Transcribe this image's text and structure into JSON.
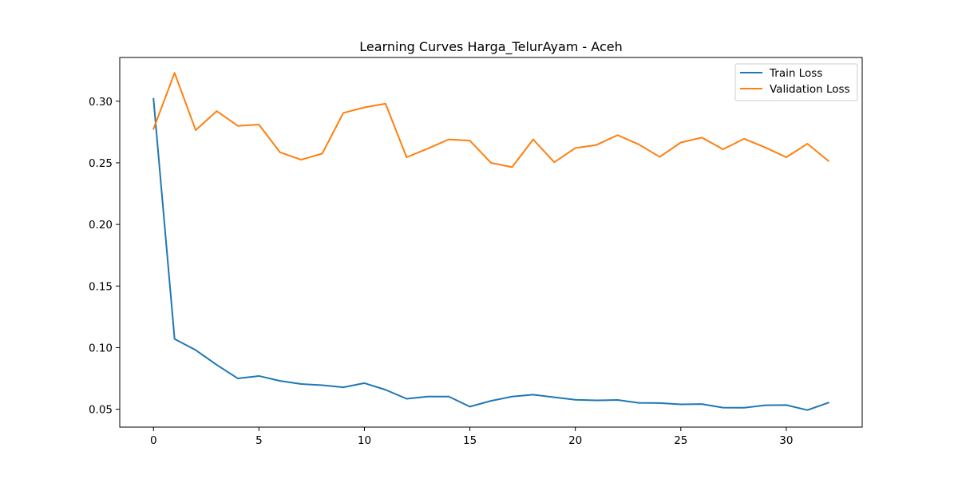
{
  "chart_data": {
    "type": "line",
    "title": "Learning Curves Harga_TelurAyam - Aceh",
    "xlabel": "",
    "ylabel": "",
    "xlim": [
      -1.6,
      33.6
    ],
    "ylim": [
      0.0355,
      0.3355
    ],
    "xticks": [
      0,
      5,
      10,
      15,
      20,
      25,
      30
    ],
    "yticks": [
      0.05,
      0.1,
      0.15,
      0.2,
      0.25,
      0.3
    ],
    "ytick_labels": [
      "0.05",
      "0.10",
      "0.15",
      "0.20",
      "0.25",
      "0.30"
    ],
    "grid": false,
    "legend_position": "top-right",
    "x": [
      0,
      1,
      2,
      3,
      4,
      5,
      6,
      7,
      8,
      9,
      10,
      11,
      12,
      13,
      14,
      15,
      16,
      17,
      18,
      19,
      20,
      21,
      22,
      23,
      24,
      25,
      26,
      27,
      28,
      29,
      30,
      31,
      32
    ],
    "series": [
      {
        "name": "Train Loss",
        "color": "#1f77b4",
        "values": [
          0.302,
          0.107,
          0.098,
          0.086,
          0.075,
          0.077,
          0.073,
          0.0705,
          0.0695,
          0.0678,
          0.0712,
          0.0658,
          0.0585,
          0.0603,
          0.0603,
          0.0521,
          0.0568,
          0.0603,
          0.0618,
          0.0597,
          0.0577,
          0.0572,
          0.0575,
          0.0552,
          0.055,
          0.054,
          0.0542,
          0.0513,
          0.0512,
          0.0532,
          0.0534,
          0.0493,
          0.0553
        ]
      },
      {
        "name": "Validation Loss",
        "color": "#ff7f0e",
        "values": [
          0.2775,
          0.323,
          0.2765,
          0.292,
          0.28,
          0.281,
          0.2585,
          0.2525,
          0.2575,
          0.2905,
          0.295,
          0.298,
          0.2545,
          0.2615,
          0.269,
          0.268,
          0.25,
          0.2465,
          0.269,
          0.2505,
          0.262,
          0.2645,
          0.2725,
          0.265,
          0.2548,
          0.2665,
          0.2705,
          0.261,
          0.2695,
          0.2625,
          0.2545,
          0.2655,
          0.2515
        ]
      }
    ]
  }
}
